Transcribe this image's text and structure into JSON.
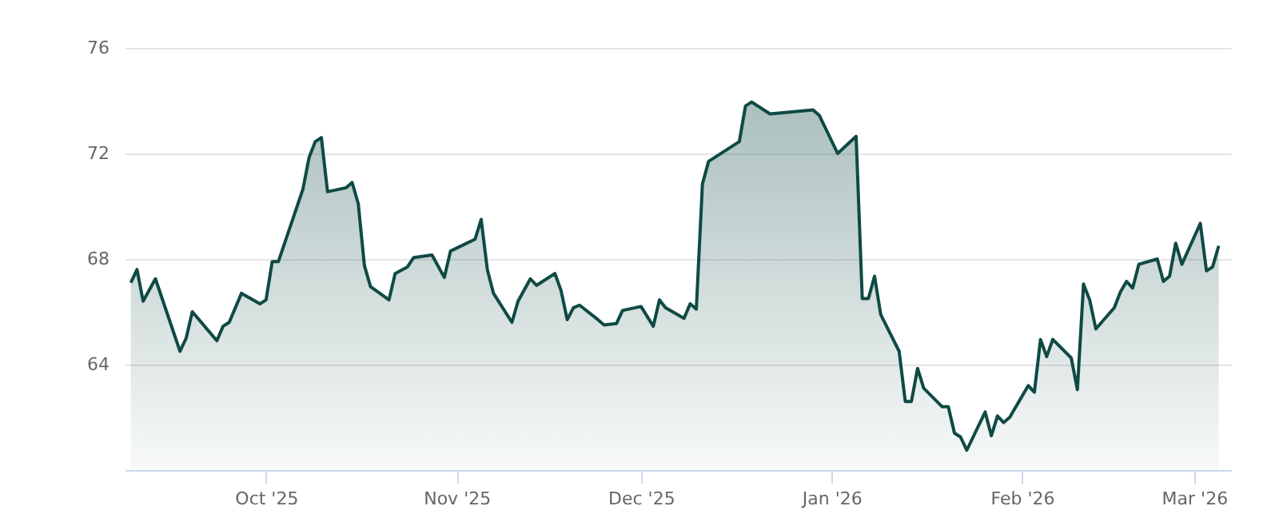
{
  "chart_data": {
    "type": "area",
    "x": [
      "2025-09-09",
      "2025-09-10",
      "2025-09-11",
      "2025-09-13",
      "2025-09-17",
      "2025-09-18",
      "2025-09-19",
      "2025-09-23",
      "2025-09-24",
      "2025-09-25",
      "2025-09-27",
      "2025-09-30",
      "2025-10-01",
      "2025-10-02",
      "2025-10-03",
      "2025-10-07",
      "2025-10-08",
      "2025-10-09",
      "2025-10-10",
      "2025-10-11",
      "2025-10-14",
      "2025-10-15",
      "2025-10-16",
      "2025-10-17",
      "2025-10-18",
      "2025-10-21",
      "2025-10-22",
      "2025-10-24",
      "2025-10-25",
      "2025-10-28",
      "2025-10-30",
      "2025-10-31",
      "2025-11-04",
      "2025-11-05",
      "2025-11-06",
      "2025-11-07",
      "2025-11-10",
      "2025-11-11",
      "2025-11-13",
      "2025-11-14",
      "2025-11-17",
      "2025-11-18",
      "2025-11-19",
      "2025-11-20",
      "2025-11-21",
      "2025-11-24",
      "2025-11-25",
      "2025-11-27",
      "2025-11-28",
      "2025-12-01",
      "2025-12-03",
      "2025-12-04",
      "2025-12-05",
      "2025-12-08",
      "2025-12-09",
      "2025-12-10",
      "2025-12-11",
      "2025-12-12",
      "2025-12-17",
      "2025-12-18",
      "2025-12-19",
      "2025-12-22",
      "2025-12-29",
      "2025-12-30",
      "2026-01-02",
      "2026-01-05",
      "2026-01-06",
      "2026-01-07",
      "2026-01-08",
      "2026-01-09",
      "2026-01-12",
      "2026-01-13",
      "2026-01-14",
      "2026-01-15",
      "2026-01-16",
      "2026-01-19",
      "2026-01-20",
      "2026-01-21",
      "2026-01-22",
      "2026-01-23",
      "2026-01-26",
      "2026-01-27",
      "2026-01-28",
      "2026-01-29",
      "2026-01-30",
      "2026-02-02",
      "2026-02-03",
      "2026-02-04",
      "2026-02-05",
      "2026-02-06",
      "2026-02-09",
      "2026-02-10",
      "2026-02-11",
      "2026-02-12",
      "2026-02-13",
      "2026-02-16",
      "2026-02-17",
      "2026-02-18",
      "2026-02-19",
      "2026-02-20",
      "2026-02-23",
      "2026-02-24",
      "2026-02-25",
      "2026-02-26",
      "2026-02-27",
      "2026-03-02",
      "2026-03-03",
      "2026-03-04",
      "2026-03-05"
    ],
    "series": [
      {
        "color": "#0f4a44",
        "values": [
          67.1,
          67.6,
          66.4,
          67.25,
          64.5,
          65.0,
          66.0,
          64.9,
          65.45,
          65.6,
          66.7,
          66.3,
          66.45,
          67.9,
          67.9,
          70.65,
          71.85,
          72.45,
          72.6,
          70.55,
          70.7,
          70.9,
          70.1,
          67.75,
          66.95,
          66.45,
          67.45,
          67.7,
          68.05,
          68.15,
          67.3,
          68.3,
          68.75,
          69.5,
          67.6,
          66.7,
          65.6,
          66.4,
          67.25,
          67.0,
          67.45,
          66.8,
          65.7,
          66.15,
          66.25,
          65.7,
          65.5,
          65.55,
          66.05,
          66.2,
          65.45,
          66.45,
          66.15,
          65.75,
          66.3,
          66.1,
          70.85,
          71.7,
          72.45,
          73.8,
          73.95,
          73.5,
          73.65,
          73.45,
          72.0,
          72.65,
          66.5,
          66.5,
          67.35,
          65.9,
          64.5,
          62.6,
          62.6,
          63.85,
          63.1,
          62.4,
          62.4,
          61.4,
          61.25,
          60.75,
          62.2,
          61.3,
          62.05,
          61.8,
          62.0,
          63.2,
          62.95,
          64.95,
          64.3,
          64.95,
          64.25,
          63.05,
          67.05,
          66.45,
          65.35,
          66.15,
          66.75,
          67.15,
          66.9,
          67.8,
          68.0,
          67.15,
          67.35,
          68.6,
          67.8,
          69.35,
          67.55,
          67.7,
          68.5
        ]
      }
    ],
    "xlim": [
      "2025-09-08",
      "2026-03-07"
    ],
    "xticks": [
      {
        "value": "2025-10-01",
        "label": "Oct '25"
      },
      {
        "value": "2025-11-01",
        "label": "Nov '25"
      },
      {
        "value": "2025-12-01",
        "label": "Dec '25"
      },
      {
        "value": "2026-01-01",
        "label": "Jan '26"
      },
      {
        "value": "2026-02-01",
        "label": "Feb '26"
      },
      {
        "value": "2026-03-01",
        "label": "Mar '26"
      }
    ],
    "ylim": [
      60,
      76
    ],
    "yticks": [
      64,
      68,
      72,
      76
    ],
    "grid": "y"
  }
}
